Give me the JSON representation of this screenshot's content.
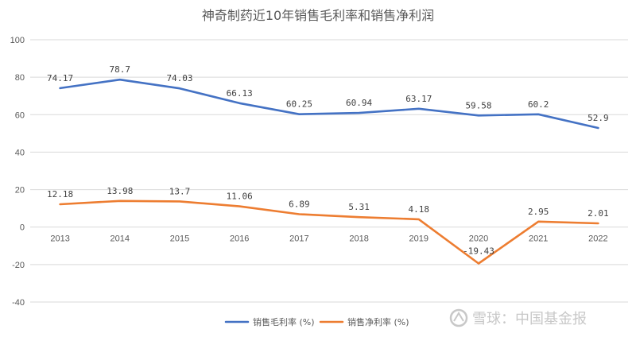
{
  "chart_data": {
    "type": "line",
    "title": "神奇制药近10年销售毛利率和销售净利润",
    "categories": [
      "2013",
      "2014",
      "2015",
      "2016",
      "2017",
      "2018",
      "2019",
      "2020",
      "2021",
      "2022"
    ],
    "series": [
      {
        "name": "销售毛利率 (%)",
        "color": "#4472c4",
        "values": [
          74.17,
          78.7,
          74.03,
          66.13,
          60.25,
          60.94,
          63.17,
          59.58,
          60.2,
          52.9
        ],
        "labels": [
          "74.17",
          "78.7",
          "74.03",
          "66.13",
          "60.25",
          "60.94",
          "63.17",
          "59.58",
          "60.2",
          "52.9"
        ]
      },
      {
        "name": "销售净利率 (%)",
        "color": "#ed7d31",
        "values": [
          12.18,
          13.98,
          13.7,
          11.06,
          6.89,
          5.31,
          4.18,
          -19.43,
          2.95,
          2.01
        ],
        "labels": [
          "12.18",
          "13.98",
          "13.7",
          "11.06",
          "6.89",
          "5.31",
          "4.18",
          "-19.43",
          "2.95",
          "2.01"
        ]
      }
    ],
    "ylim": [
      -40,
      100
    ],
    "yticks": [
      "-40",
      "-20",
      "0",
      "20",
      "40",
      "60",
      "80",
      "100"
    ],
    "ytick_values": [
      -40,
      -20,
      0,
      20,
      40,
      60,
      80,
      100
    ],
    "grid": true,
    "legend_position": "bottom",
    "xlabel": "",
    "ylabel": ""
  },
  "watermark": {
    "icon": "snowball-logo-icon",
    "text": "雪球：中国基金报"
  }
}
